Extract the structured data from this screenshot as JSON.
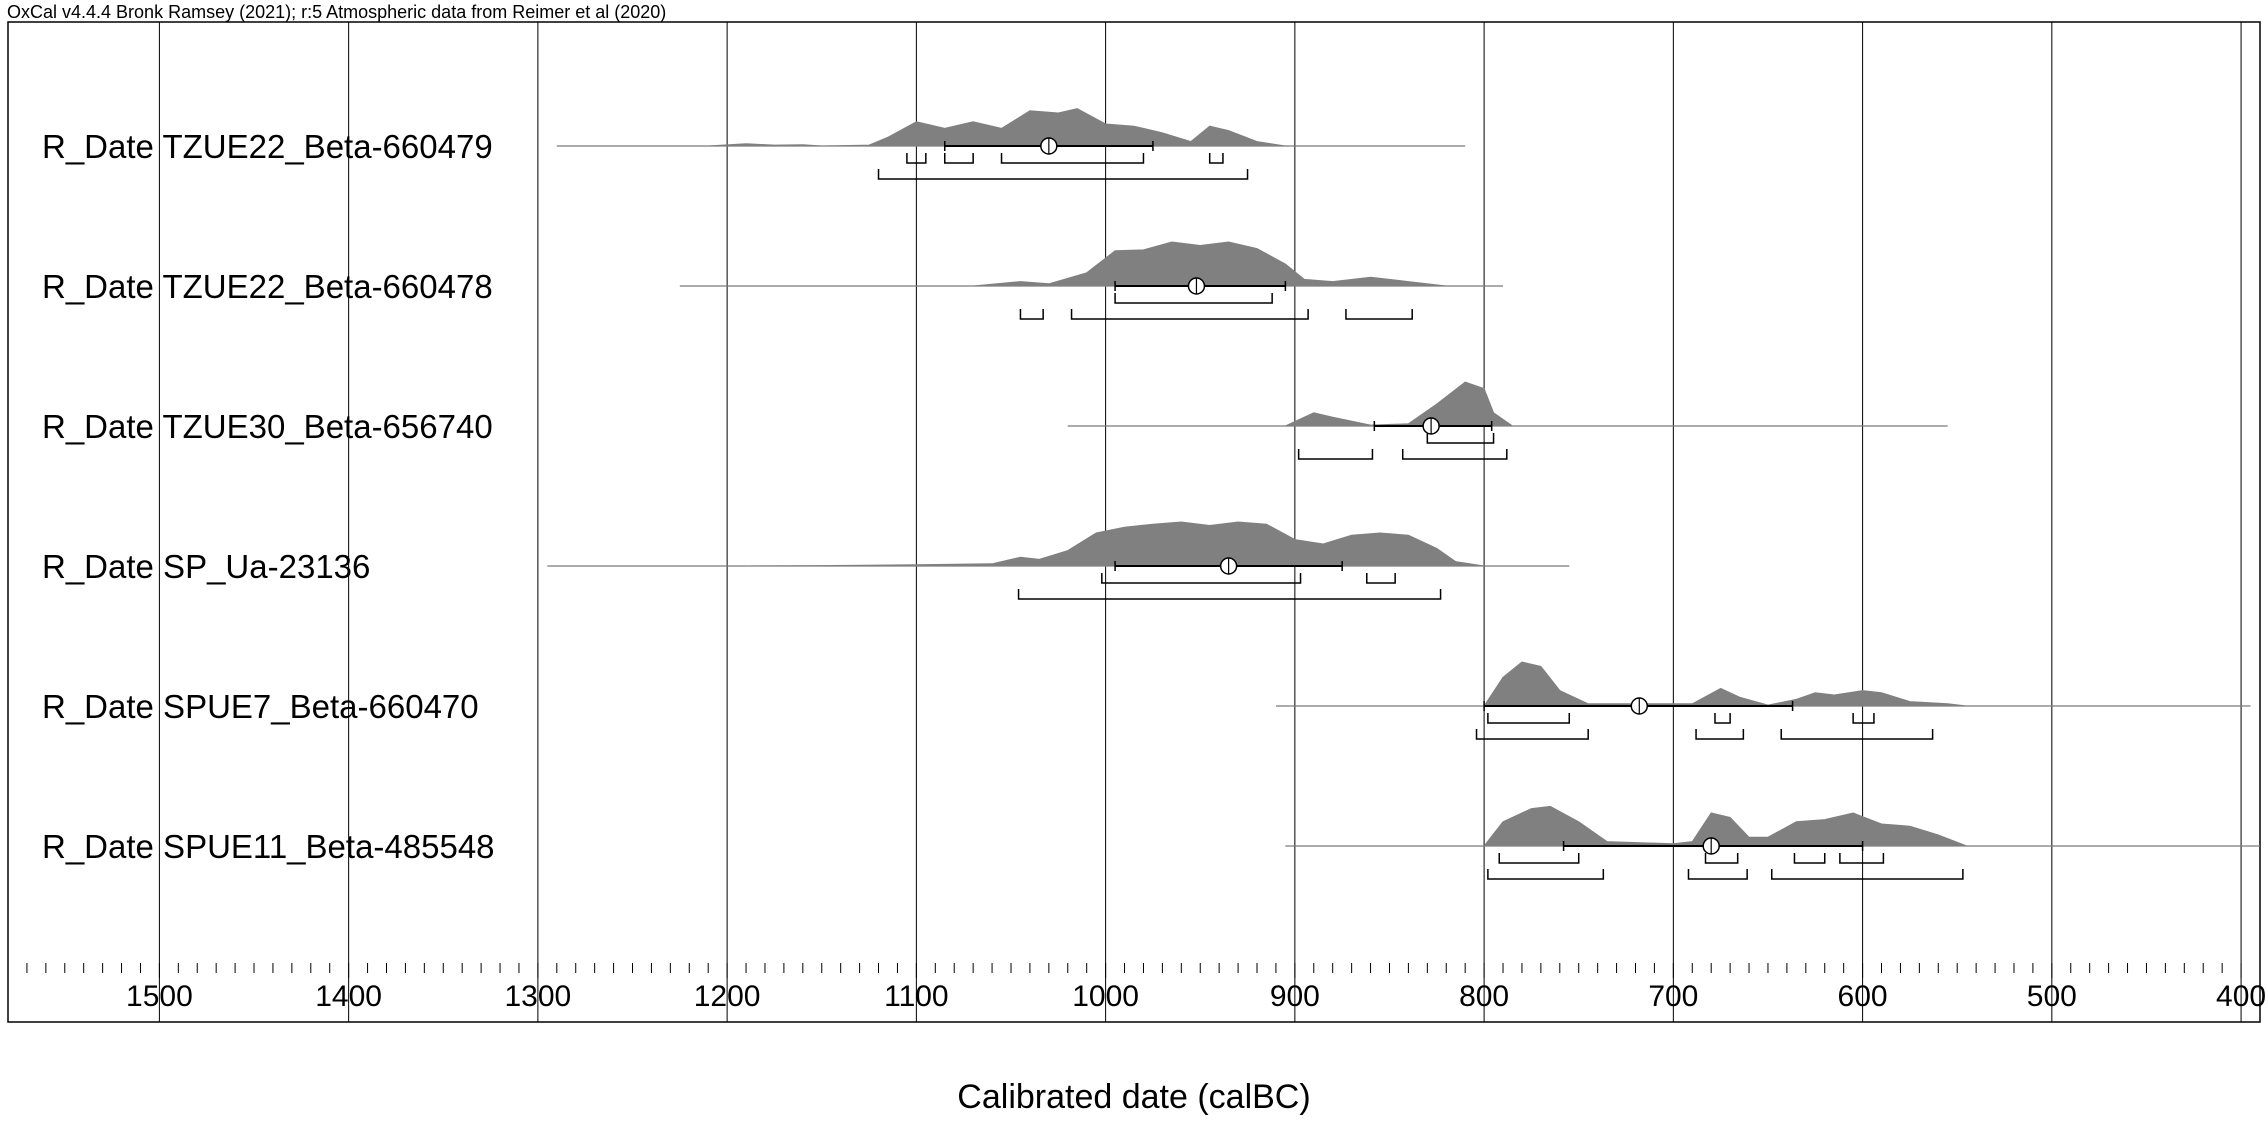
{
  "header": "OxCal v4.4.4 Bronk Ramsey (2021); r:5 Atmospheric data from Reimer et al (2020)",
  "chart_data": {
    "type": "area",
    "title": "",
    "xlabel": "Calibrated date (calBC)",
    "ylabel": "",
    "xlim": [
      1580,
      390
    ],
    "x_ticks": [
      1500,
      1400,
      1300,
      1200,
      1100,
      1000,
      900,
      800,
      700,
      600,
      500,
      400
    ],
    "minor_tick_step": 10,
    "grid": true,
    "fill_color": "#808080",
    "series": [
      {
        "name": "R_Date TZUE22_Beta-660479",
        "line": [
          1290,
          810
        ],
        "density": [
          [
            1210,
            0
          ],
          [
            1190,
            0.05
          ],
          [
            1175,
            0.02
          ],
          [
            1160,
            0.03
          ],
          [
            1150,
            0
          ],
          [
            1125,
            0.02
          ],
          [
            1115,
            0.2
          ],
          [
            1100,
            0.55
          ],
          [
            1085,
            0.4
          ],
          [
            1070,
            0.55
          ],
          [
            1055,
            0.4
          ],
          [
            1040,
            0.8
          ],
          [
            1025,
            0.75
          ],
          [
            1015,
            0.85
          ],
          [
            1000,
            0.5
          ],
          [
            985,
            0.45
          ],
          [
            970,
            0.3
          ],
          [
            955,
            0.1
          ],
          [
            945,
            0.45
          ],
          [
            935,
            0.35
          ],
          [
            920,
            0.1
          ],
          [
            905,
            0
          ]
        ],
        "point": 1030,
        "sigma_bar": [
          1085,
          975
        ],
        "range_68": [
          [
            1105,
            1095
          ],
          [
            1085,
            1070
          ],
          [
            1055,
            980
          ],
          [
            945,
            938
          ]
        ],
        "range_95": [
          [
            1120,
            925
          ]
        ]
      },
      {
        "name": "R_Date TZUE22_Beta-660478",
        "line": [
          1225,
          790
        ],
        "density": [
          [
            1070,
            0
          ],
          [
            1045,
            0.1
          ],
          [
            1030,
            0.05
          ],
          [
            1010,
            0.3
          ],
          [
            995,
            0.8
          ],
          [
            980,
            0.82
          ],
          [
            965,
            1.0
          ],
          [
            950,
            0.92
          ],
          [
            935,
            1.0
          ],
          [
            920,
            0.85
          ],
          [
            905,
            0.5
          ],
          [
            895,
            0.15
          ],
          [
            880,
            0.1
          ],
          [
            860,
            0.2
          ],
          [
            840,
            0.1
          ],
          [
            820,
            0
          ]
        ],
        "point": 952,
        "sigma_bar": [
          995,
          905
        ],
        "range_68": [
          [
            995,
            912
          ]
        ],
        "range_95": [
          [
            1045,
            1033
          ],
          [
            1018,
            893
          ],
          [
            873,
            838
          ]
        ]
      },
      {
        "name": "R_Date TZUE30_Beta-656740",
        "line": [
          1020,
          555
        ],
        "density": [
          [
            905,
            0
          ],
          [
            890,
            0.3
          ],
          [
            880,
            0.2
          ],
          [
            860,
            0.02
          ],
          [
            840,
            0.05
          ],
          [
            825,
            0.5
          ],
          [
            810,
            1.0
          ],
          [
            800,
            0.85
          ],
          [
            795,
            0.3
          ],
          [
            785,
            0
          ]
        ],
        "point": 828,
        "sigma_bar": [
          858,
          796
        ],
        "range_68": [
          [
            830,
            795
          ]
        ],
        "range_95": [
          [
            898,
            859
          ],
          [
            843,
            788
          ]
        ]
      },
      {
        "name": "R_Date SP_Ua-23136",
        "line": [
          1295,
          755
        ],
        "density": [
          [
            1190,
            0
          ],
          [
            1150,
            0.01
          ],
          [
            1100,
            0.03
          ],
          [
            1060,
            0.05
          ],
          [
            1045,
            0.2
          ],
          [
            1035,
            0.15
          ],
          [
            1020,
            0.35
          ],
          [
            1005,
            0.75
          ],
          [
            990,
            0.88
          ],
          [
            975,
            0.95
          ],
          [
            960,
            1.0
          ],
          [
            945,
            0.92
          ],
          [
            930,
            1.0
          ],
          [
            915,
            0.95
          ],
          [
            900,
            0.6
          ],
          [
            885,
            0.5
          ],
          [
            870,
            0.7
          ],
          [
            855,
            0.75
          ],
          [
            840,
            0.7
          ],
          [
            825,
            0.4
          ],
          [
            815,
            0.1
          ],
          [
            800,
            0
          ]
        ],
        "point": 935,
        "sigma_bar": [
          995,
          875
        ],
        "range_68": [
          [
            1002,
            897
          ],
          [
            862,
            847
          ]
        ],
        "range_95": [
          [
            1046,
            823
          ]
        ]
      },
      {
        "name": "R_Date SPUE7_Beta-660470",
        "line": [
          910,
          395
        ],
        "density": [
          [
            800,
            0
          ],
          [
            790,
            0.65
          ],
          [
            780,
            1.0
          ],
          [
            770,
            0.9
          ],
          [
            760,
            0.35
          ],
          [
            745,
            0.05
          ],
          [
            690,
            0.05
          ],
          [
            675,
            0.4
          ],
          [
            665,
            0.2
          ],
          [
            650,
            0.02
          ],
          [
            635,
            0.15
          ],
          [
            625,
            0.3
          ],
          [
            615,
            0.25
          ],
          [
            600,
            0.35
          ],
          [
            590,
            0.3
          ],
          [
            575,
            0.1
          ],
          [
            555,
            0.05
          ],
          [
            545,
            0
          ]
        ],
        "point": 718,
        "sigma_bar": [
          800,
          637
        ],
        "range_68": [
          [
            798,
            755
          ],
          [
            678,
            670
          ],
          [
            605,
            594
          ]
        ],
        "range_95": [
          [
            804,
            745
          ],
          [
            688,
            663
          ],
          [
            643,
            563
          ]
        ]
      },
      {
        "name": "R_Date SPUE11_Beta-485548",
        "line": [
          905,
          390
        ],
        "density": [
          [
            800,
            0
          ],
          [
            790,
            0.55
          ],
          [
            775,
            0.85
          ],
          [
            765,
            0.9
          ],
          [
            750,
            0.55
          ],
          [
            735,
            0.1
          ],
          [
            700,
            0.05
          ],
          [
            690,
            0.1
          ],
          [
            680,
            0.75
          ],
          [
            670,
            0.65
          ],
          [
            660,
            0.2
          ],
          [
            650,
            0.2
          ],
          [
            635,
            0.55
          ],
          [
            620,
            0.6
          ],
          [
            605,
            0.75
          ],
          [
            590,
            0.5
          ],
          [
            575,
            0.45
          ],
          [
            560,
            0.25
          ],
          [
            545,
            0
          ]
        ],
        "point": 680,
        "sigma_bar": [
          758,
          600
        ],
        "range_68": [
          [
            792,
            750
          ],
          [
            683,
            666
          ],
          [
            636,
            620
          ],
          [
            612,
            589
          ]
        ],
        "range_95": [
          [
            798,
            737
          ],
          [
            692,
            661
          ],
          [
            648,
            547
          ]
        ]
      }
    ]
  }
}
